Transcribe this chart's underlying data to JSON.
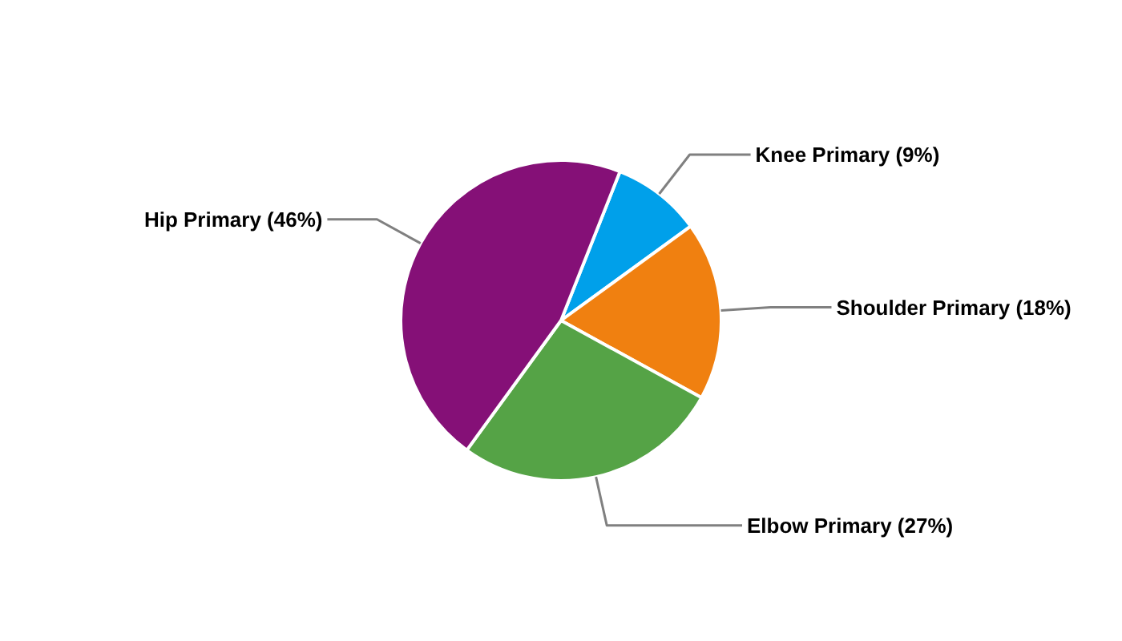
{
  "chart_data": {
    "type": "pie",
    "categories": [
      "Knee Primary",
      "Shoulder Primary",
      "Elbow Primary",
      "Hip Primary"
    ],
    "values": [
      9,
      18,
      27,
      46
    ],
    "value_labels": [
      "(9%)",
      "(18%)",
      "(27%)",
      "(46%)"
    ],
    "colors": [
      "#00a0ea",
      "#f08010",
      "#55a346",
      "#851077"
    ]
  }
}
